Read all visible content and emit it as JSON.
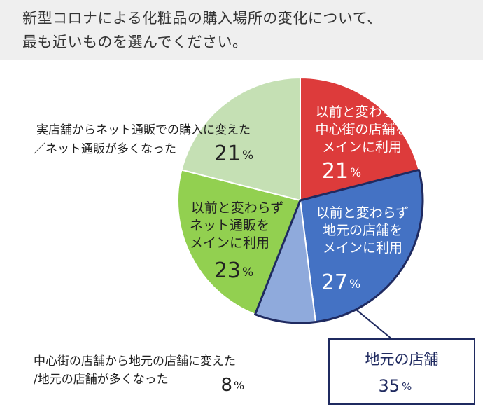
{
  "chart_data": {
    "type": "pie",
    "title_lines": [
      "新型コロナによる化粧品の購入場所の変化について、",
      "最も近いものを選んでください。"
    ],
    "slices": [
      {
        "label_lines": [
          "以前と変わらず",
          "中心街の店舗を",
          "メインに利用"
        ],
        "value": 21,
        "display": "21",
        "color": "#dd3b3b"
      },
      {
        "label_lines": [
          "以前と変わらず",
          "地元の店舗を",
          "メインに利用"
        ],
        "value": 27,
        "display": "27",
        "color": "#4472c4"
      },
      {
        "label_lines": [
          "中心街の店舗から地元の店舗に変えた",
          "/地元の店舗が多くなった"
        ],
        "value": 8,
        "display": "8",
        "color": "#8faadc"
      },
      {
        "label_lines": [
          "以前と変わらず",
          "ネット通販を",
          "メインに利用"
        ],
        "value": 23,
        "display": "23",
        "color": "#92d050"
      },
      {
        "label_lines": [
          "実店舗からネット通販での購入に変えた",
          "／ネット通販が多くなった"
        ],
        "value": 21,
        "display": "21",
        "color": "#c5e0b4"
      }
    ],
    "percent_sign": "%",
    "callout": {
      "label": "地元の店舗",
      "value": "35",
      "border_color": "#1f2a60",
      "text_color": "#1f2a60"
    }
  }
}
